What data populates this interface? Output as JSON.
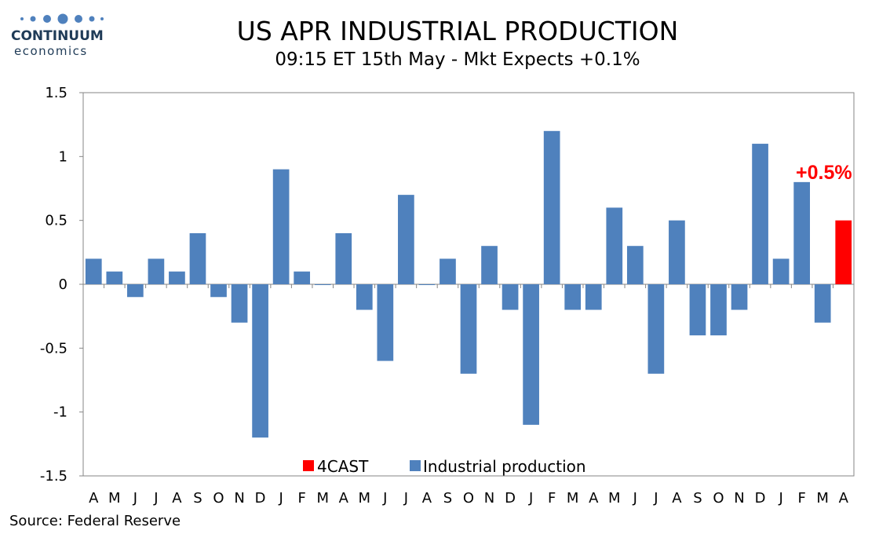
{
  "logo": {
    "name": "CONTINUUM",
    "sub": "economics"
  },
  "title": "US APR INDUSTRIAL PRODUCTION",
  "subtitle": "09:15 ET 15th May - Mkt Expects +0.1%",
  "source": "Source: Federal Reserve",
  "chart_data": {
    "type": "bar",
    "categories": [
      "A",
      "M",
      "J",
      "J",
      "A",
      "S",
      "O",
      "N",
      "D",
      "J",
      "F",
      "M",
      "A",
      "M",
      "J",
      "J",
      "A",
      "S",
      "O",
      "N",
      "D",
      "J",
      "F",
      "M",
      "A",
      "M",
      "J",
      "J",
      "A",
      "S",
      "O",
      "N",
      "D",
      "J",
      "F",
      "M",
      "A"
    ],
    "series": [
      {
        "name": "Industrial production",
        "color": "#4f81bd",
        "values": [
          0.2,
          0.1,
          -0.1,
          0.2,
          0.1,
          0.4,
          -0.1,
          -0.3,
          -1.2,
          0.9,
          0.1,
          0.0,
          0.4,
          -0.2,
          -0.6,
          0.7,
          0.0,
          0.2,
          -0.7,
          0.3,
          -0.2,
          -1.1,
          1.2,
          -0.2,
          -0.2,
          0.6,
          0.3,
          -0.7,
          0.5,
          -0.4,
          -0.4,
          -0.2,
          1.1,
          0.2,
          0.8,
          -0.3,
          null
        ]
      },
      {
        "name": "4CAST",
        "color": "#ff0000",
        "values": [
          null,
          null,
          null,
          null,
          null,
          null,
          null,
          null,
          null,
          null,
          null,
          null,
          null,
          null,
          null,
          null,
          null,
          null,
          null,
          null,
          null,
          null,
          null,
          null,
          null,
          null,
          null,
          null,
          null,
          null,
          null,
          null,
          null,
          null,
          null,
          null,
          0.5
        ]
      }
    ],
    "yticks": [
      "1.5",
      "1",
      "0.5",
      "0",
      "-0.5",
      "-1",
      "-1.5"
    ],
    "ylim": [
      -1.5,
      1.5
    ],
    "annotation": "+0.5%",
    "legend_position": "bottom-center",
    "grid": false
  }
}
